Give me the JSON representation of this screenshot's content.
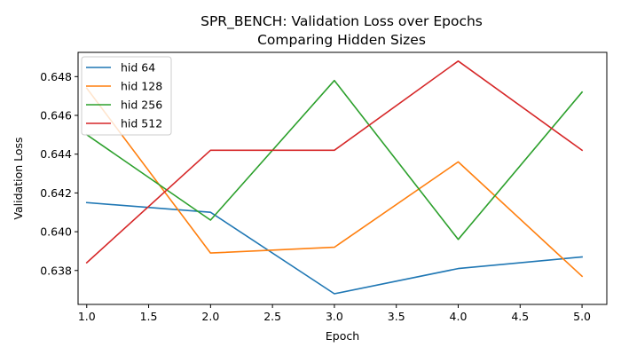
{
  "chart_data": {
    "type": "line",
    "title": "SPR_BENCH: Validation Loss over Epochs",
    "subtitle": "Comparing Hidden Sizes",
    "xlabel": "Epoch",
    "ylabel": "Validation Loss",
    "xlim": [
      0.93,
      5.2
    ],
    "ylim": [
      0.63625,
      0.64925
    ],
    "xticks": [
      1.0,
      1.5,
      2.0,
      2.5,
      3.0,
      3.5,
      4.0,
      4.5,
      5.0
    ],
    "xtick_labels": [
      "1.0",
      "1.5",
      "2.0",
      "2.5",
      "3.0",
      "3.5",
      "4.0",
      "4.5",
      "5.0"
    ],
    "yticks": [
      0.638,
      0.64,
      0.642,
      0.644,
      0.646,
      0.648
    ],
    "ytick_labels": [
      "0.638",
      "0.640",
      "0.642",
      "0.644",
      "0.646",
      "0.648"
    ],
    "grid": false,
    "legend_position": "top-left",
    "series": [
      {
        "name": "hid 64",
        "color": "#1f77b4",
        "x": [
          1,
          2,
          3,
          4,
          5
        ],
        "y": [
          0.6415,
          0.641,
          0.6368,
          0.6381,
          0.6387
        ]
      },
      {
        "name": "hid 128",
        "color": "#ff7f0e",
        "x": [
          1,
          2,
          3,
          4,
          5
        ],
        "y": [
          0.6474,
          0.6389,
          0.6392,
          0.6436,
          0.6377
        ]
      },
      {
        "name": "hid 256",
        "color": "#2ca02c",
        "x": [
          1,
          2,
          3,
          4,
          5
        ],
        "y": [
          0.645,
          0.6406,
          0.6478,
          0.6396,
          0.6472
        ]
      },
      {
        "name": "hid 512",
        "color": "#d62728",
        "x": [
          1,
          2,
          3,
          4,
          5
        ],
        "y": [
          0.6384,
          0.6442,
          0.6442,
          0.6488,
          0.6442
        ]
      }
    ]
  }
}
